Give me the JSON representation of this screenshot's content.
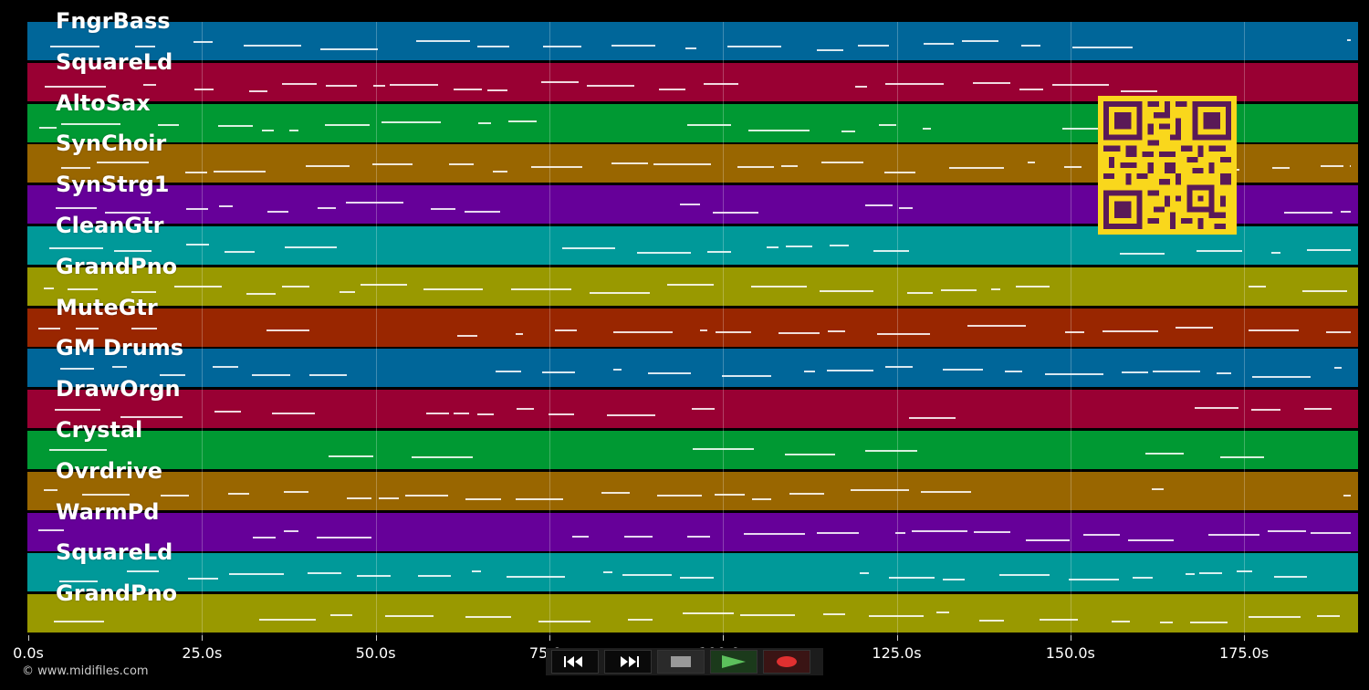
{
  "tracks": [
    {
      "name": "FngrBass",
      "color": "#006699"
    },
    {
      "name": "SquareLd",
      "color": "#990033"
    },
    {
      "name": "AltoSax",
      "color": "#009933"
    },
    {
      "name": "SynChoir",
      "color": "#996600"
    },
    {
      "name": "SynStrg1",
      "color": "#660099"
    },
    {
      "name": "CleanGtr",
      "color": "#009999"
    },
    {
      "name": "GrandPno",
      "color": "#999900"
    },
    {
      "name": "MuteGtr",
      "color": "#992600"
    },
    {
      "name": "GM Drums",
      "color": "#006699"
    },
    {
      "name": "DrawOrgn",
      "color": "#990033"
    },
    {
      "name": "Crystal",
      "color": "#009933"
    },
    {
      "name": "Ovrdrive",
      "color": "#996600"
    },
    {
      "name": "WarmPd",
      "color": "#660099"
    },
    {
      "name": "SquareLd",
      "color": "#009999"
    },
    {
      "name": "GrandPno",
      "color": "#999900"
    }
  ],
  "timeline": {
    "ticks": [
      "0.0s",
      "25.0s",
      "50.0s",
      "75.0s",
      "100.0s",
      "125.0s",
      "150.0s",
      "175.0s"
    ]
  },
  "transport": {
    "buttons": [
      {
        "name": "rewind-button",
        "icon": "rewind-icon"
      },
      {
        "name": "fast-forward-button",
        "icon": "fast-forward-icon"
      },
      {
        "name": "stop-button",
        "icon": "stop-icon"
      },
      {
        "name": "play-button",
        "icon": "play-icon"
      },
      {
        "name": "record-button",
        "icon": "record-icon"
      }
    ]
  },
  "footer": {
    "copyright": "© www.midifiles.com"
  },
  "overlay": {
    "qr_icon": "qr-code-icon",
    "qr_color": "#f9d71c"
  }
}
